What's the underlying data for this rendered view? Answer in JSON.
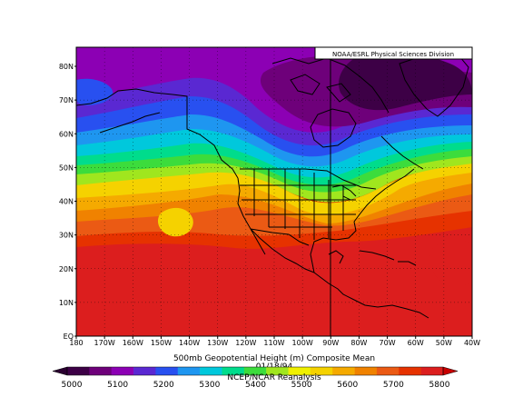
{
  "credit": "NOAA/ESRL Physical Sciences Division",
  "caption_line1": "500mb Geopotential Height (m) Composite Mean",
  "caption_line2": "01/18/94",
  "caption_line3": "NCEP/NCAR Reanalysis",
  "lat_labels": [
    "80N",
    "70N",
    "60N",
    "50N",
    "40N",
    "30N",
    "20N",
    "10N",
    "EQ"
  ],
  "lon_labels": [
    "180",
    "170W",
    "160W",
    "150W",
    "140W",
    "130W",
    "120W",
    "110W",
    "100W",
    "90W",
    "80W",
    "70W",
    "60W",
    "50W",
    "40W"
  ],
  "colorbar": {
    "labels": [
      "5000",
      "5100",
      "5200",
      "5300",
      "5400",
      "5500",
      "5600",
      "5700",
      "5800"
    ],
    "colors": [
      "#3d0046",
      "#6e007a",
      "#8c00b4",
      "#5a28d2",
      "#2850f0",
      "#1e96f0",
      "#00c8dc",
      "#00dc8c",
      "#3cdc3c",
      "#a0e61e",
      "#f0f000",
      "#f5d200",
      "#f5aa00",
      "#f08200",
      "#eb5a14",
      "#e63200",
      "#dc1e1e"
    ]
  }
}
